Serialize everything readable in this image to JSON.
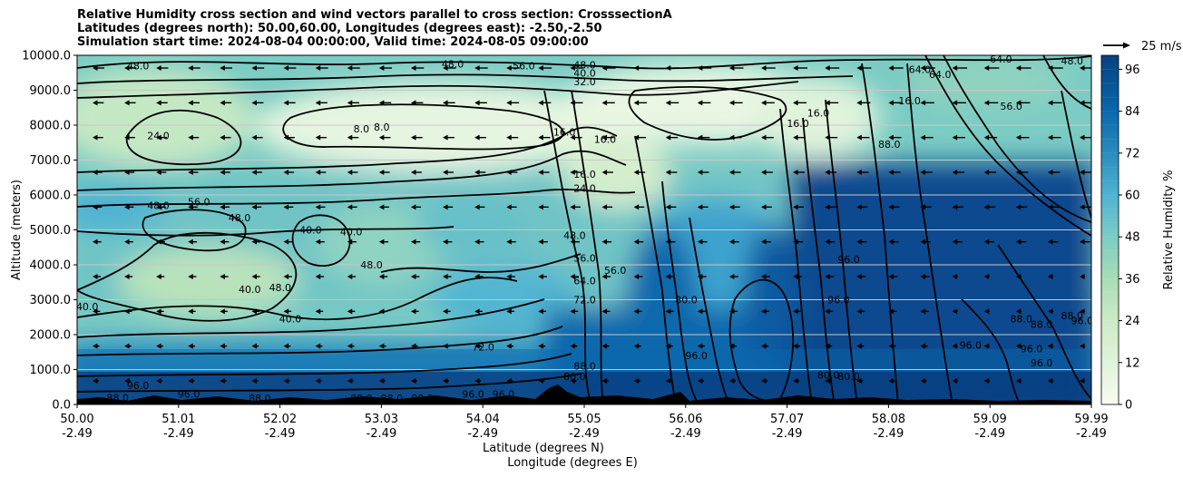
{
  "chart_data": {
    "type": "heatmap",
    "title_lines": [
      "Relative Humidity cross section and wind vectors parallel to cross section: CrosssectionA",
      "Latitudes (degrees north): 50.00,60.00, Longitudes (degrees east): -2.50,-2.50",
      "Simulation start time: 2024-08-04 00:00:00, Valid time: 2024-08-05 09:00:00"
    ],
    "xlabel": "Latitude (degrees N)",
    "xlabel2": "Longitude (degrees E)",
    "ylabel": "Altitude (meters)",
    "x_ticks": [
      {
        "lat": "50.00",
        "lon": "-2.49"
      },
      {
        "lat": "51.01",
        "lon": "-2.49"
      },
      {
        "lat": "52.02",
        "lon": "-2.49"
      },
      {
        "lat": "53.03",
        "lon": "-2.49"
      },
      {
        "lat": "54.04",
        "lon": "-2.49"
      },
      {
        "lat": "55.05",
        "lon": "-2.49"
      },
      {
        "lat": "56.06",
        "lon": "-2.49"
      },
      {
        "lat": "57.07",
        "lon": "-2.49"
      },
      {
        "lat": "58.08",
        "lon": "-2.49"
      },
      {
        "lat": "59.09",
        "lon": "-2.49"
      },
      {
        "lat": "59.99",
        "lon": "-2.49"
      }
    ],
    "y_ticks": [
      "0.0",
      "1000.0",
      "2000.0",
      "3000.0",
      "4000.0",
      "5000.0",
      "6000.0",
      "7000.0",
      "8000.0",
      "9000.0",
      "10000.0"
    ],
    "ylim": [
      0,
      10000
    ],
    "xlim": [
      50.0,
      59.99
    ],
    "grid": "horizontal",
    "colorbar": {
      "label": "Relative Humidity %",
      "ticks": [
        "0",
        "12",
        "24",
        "36",
        "48",
        "60",
        "72",
        "84",
        "96"
      ],
      "range": [
        0,
        100
      ],
      "colormap": "GnBu"
    },
    "quiver_key": "25 m/s",
    "contour_labels": [
      {
        "text": "48.0",
        "x": 50.6,
        "y": 9700
      },
      {
        "text": "48.0",
        "x": 53.7,
        "y": 9750
      },
      {
        "text": "56.0",
        "x": 54.4,
        "y": 9700
      },
      {
        "text": "48.0",
        "x": 55.0,
        "y": 9730
      },
      {
        "text": "40.0",
        "x": 55.0,
        "y": 9500
      },
      {
        "text": "32.0",
        "x": 55.0,
        "y": 9250
      },
      {
        "text": "24.0",
        "x": 50.8,
        "y": 7700
      },
      {
        "text": "8.0",
        "x": 52.8,
        "y": 7900
      },
      {
        "text": "8.0",
        "x": 53.0,
        "y": 7950
      },
      {
        "text": "16.0",
        "x": 54.8,
        "y": 7800
      },
      {
        "text": "16.0",
        "x": 55.2,
        "y": 7600
      },
      {
        "text": "16.0",
        "x": 57.1,
        "y": 8050
      },
      {
        "text": "16.0",
        "x": 57.3,
        "y": 8350
      },
      {
        "text": "16.0",
        "x": 58.2,
        "y": 8700
      },
      {
        "text": "16.0",
        "x": 55.0,
        "y": 6600
      },
      {
        "text": "24.0",
        "x": 55.0,
        "y": 6200
      },
      {
        "text": "56.0",
        "x": 51.2,
        "y": 5800
      },
      {
        "text": "48.0",
        "x": 50.8,
        "y": 5700
      },
      {
        "text": "48.0",
        "x": 51.6,
        "y": 5350
      },
      {
        "text": "40.0",
        "x": 52.3,
        "y": 5000
      },
      {
        "text": "40.0",
        "x": 52.7,
        "y": 4950
      },
      {
        "text": "48.0",
        "x": 52.9,
        "y": 4000
      },
      {
        "text": "48.0",
        "x": 54.9,
        "y": 4850
      },
      {
        "text": "56.0",
        "x": 55.0,
        "y": 4200
      },
      {
        "text": "56.0",
        "x": 55.3,
        "y": 3850
      },
      {
        "text": "64.0",
        "x": 55.0,
        "y": 3550
      },
      {
        "text": "72.0",
        "x": 55.0,
        "y": 3000
      },
      {
        "text": "40.0",
        "x": 50.1,
        "y": 2800
      },
      {
        "text": "40.0",
        "x": 51.7,
        "y": 3300
      },
      {
        "text": "48.0",
        "x": 52.0,
        "y": 3350
      },
      {
        "text": "40.0",
        "x": 52.1,
        "y": 2450
      },
      {
        "text": "80.0",
        "x": 56.0,
        "y": 3000
      },
      {
        "text": "96.0",
        "x": 57.6,
        "y": 4150
      },
      {
        "text": "96.0",
        "x": 57.5,
        "y": 3000
      },
      {
        "text": "72.0",
        "x": 54.0,
        "y": 1650
      },
      {
        "text": "80.0",
        "x": 54.9,
        "y": 800
      },
      {
        "text": "88.0",
        "x": 55.0,
        "y": 1100
      },
      {
        "text": "96.0",
        "x": 56.1,
        "y": 1400
      },
      {
        "text": "80.0",
        "x": 57.4,
        "y": 850
      },
      {
        "text": "80.0",
        "x": 57.6,
        "y": 800
      },
      {
        "text": "88.0",
        "x": 58.0,
        "y": 7450
      },
      {
        "text": "88.0",
        "x": 59.3,
        "y": 2450
      },
      {
        "text": "88.0",
        "x": 59.5,
        "y": 2300
      },
      {
        "text": "88.0",
        "x": 59.8,
        "y": 2550
      },
      {
        "text": "96.0",
        "x": 59.4,
        "y": 1600
      },
      {
        "text": "96.0",
        "x": 59.5,
        "y": 1200
      },
      {
        "text": "96.0",
        "x": 59.9,
        "y": 2400
      },
      {
        "text": "96.0",
        "x": 58.8,
        "y": 1700
      },
      {
        "text": "56.0",
        "x": 59.2,
        "y": 8550
      },
      {
        "text": "64.0",
        "x": 58.5,
        "y": 9450
      },
      {
        "text": "64.0",
        "x": 59.1,
        "y": 9900
      },
      {
        "text": "48.0",
        "x": 59.8,
        "y": 9850
      },
      {
        "text": "88.0",
        "x": 50.4,
        "y": 200
      },
      {
        "text": "96.0",
        "x": 50.6,
        "y": 550
      },
      {
        "text": "96.0",
        "x": 51.1,
        "y": 300
      },
      {
        "text": "88.0",
        "x": 51.8,
        "y": 180
      },
      {
        "text": "88.0",
        "x": 52.8,
        "y": 180
      },
      {
        "text": "88.0",
        "x": 53.1,
        "y": 180
      },
      {
        "text": "88.0",
        "x": 53.4,
        "y": 180
      },
      {
        "text": "96.0",
        "x": 53.9,
        "y": 300
      },
      {
        "text": "96.0",
        "x": 54.2,
        "y": 300
      },
      {
        "text": "64.0",
        "x": 58.3,
        "y": 9600
      }
    ]
  }
}
